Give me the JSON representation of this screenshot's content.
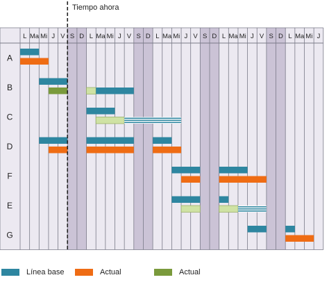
{
  "now_label": "Tiempo ahora",
  "days": [
    "L",
    "Ma",
    "Mi",
    "J",
    "V",
    "S",
    "D",
    "L",
    "Ma",
    "Mi",
    "J",
    "V",
    "S",
    "D",
    "L",
    "Ma",
    "Mi",
    "J",
    "V",
    "S",
    "D",
    "L",
    "Ma",
    "Mi",
    "J",
    "V",
    "S",
    "D",
    "L",
    "Ma",
    "Mi",
    "J"
  ],
  "weekend_days": [
    5,
    6,
    12,
    13,
    19,
    20,
    26,
    27
  ],
  "now_day": 5,
  "rows": [
    {
      "label": "A",
      "bars": [
        {
          "kind": "baseline",
          "start": 0,
          "end": 2
        },
        {
          "kind": "actual",
          "start": 0,
          "end": 3
        }
      ]
    },
    {
      "label": "B",
      "bars": [
        {
          "kind": "baseline",
          "start": 2,
          "end": 5
        },
        {
          "kind": "actual2",
          "start": 3,
          "end": 5
        },
        {
          "kind": "light",
          "start": 7,
          "end": 8
        },
        {
          "kind": "baseline",
          "start": 8,
          "end": 12
        }
      ]
    },
    {
      "label": "C",
      "bars": [
        {
          "kind": "baseline",
          "start": 7,
          "end": 10
        },
        {
          "kind": "light",
          "start": 8,
          "end": 11
        },
        {
          "kind": "slack",
          "start": 11,
          "end": 17
        }
      ]
    },
    {
      "label": "D",
      "bars": [
        {
          "kind": "baseline",
          "start": 2,
          "end": 5
        },
        {
          "kind": "baseline",
          "start": 7,
          "end": 12
        },
        {
          "kind": "baseline",
          "start": 14,
          "end": 16
        },
        {
          "kind": "actual",
          "start": 3,
          "end": 5
        },
        {
          "kind": "actual",
          "start": 7,
          "end": 12
        },
        {
          "kind": "actual",
          "start": 14,
          "end": 17
        }
      ]
    },
    {
      "label": "F",
      "bars": [
        {
          "kind": "baseline",
          "start": 16,
          "end": 19
        },
        {
          "kind": "baseline",
          "start": 21,
          "end": 24
        },
        {
          "kind": "actual",
          "start": 17,
          "end": 19
        },
        {
          "kind": "actual",
          "start": 21,
          "end": 26
        }
      ]
    },
    {
      "label": "E",
      "bars": [
        {
          "kind": "baseline",
          "start": 16,
          "end": 19
        },
        {
          "kind": "baseline",
          "start": 21,
          "end": 22
        },
        {
          "kind": "light",
          "start": 17,
          "end": 19
        },
        {
          "kind": "light",
          "start": 21,
          "end": 23
        },
        {
          "kind": "slack",
          "start": 23,
          "end": 26
        }
      ]
    },
    {
      "label": "G",
      "bars": [
        {
          "kind": "baseline",
          "start": 24,
          "end": 26
        },
        {
          "kind": "baseline",
          "start": 28,
          "end": 29
        },
        {
          "kind": "actual",
          "start": 28,
          "end": 31
        }
      ]
    }
  ],
  "legend": [
    {
      "label": "Línea base",
      "color": "#2e86a0"
    },
    {
      "label": "Actual",
      "color": "#ef6c14"
    },
    {
      "label": "Actual",
      "color": "#7a9a3c"
    }
  ],
  "colors": {
    "baseline": "#2e86a0",
    "actual": "#ef6c14",
    "actual2": "#7a9a3c",
    "light": "#cfe2a4",
    "slack": "#2e86a0",
    "grid_bg": "#ece9f1",
    "weekend_bg": "#cbc3d6",
    "grid_line": "#7a7a88"
  }
}
